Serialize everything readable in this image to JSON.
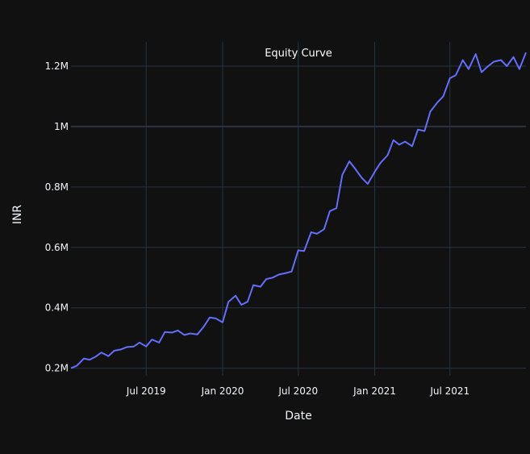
{
  "chart_data": {
    "type": "line",
    "title": "Equity Curve",
    "xlabel": "Date",
    "ylabel": "INR",
    "x_ticks": [
      "Jul 2019",
      "Jan 2020",
      "Jul 2020",
      "Jan 2021",
      "Jul 2021"
    ],
    "y_ticks": [
      "0.2M",
      "0.4M",
      "0.6M",
      "0.8M",
      "1M",
      "1.2M"
    ],
    "y_tick_values": [
      200000,
      400000,
      600000,
      800000,
      1000000,
      1200000
    ],
    "xlim": [
      "2019-01-01",
      "2021-12-31"
    ],
    "ylim": [
      175000,
      1280000
    ],
    "grid": true,
    "series": [
      {
        "name": "Equity",
        "color": "#636efa",
        "x": [
          "2019-01-01",
          "2019-01-15",
          "2019-02-01",
          "2019-02-15",
          "2019-03-01",
          "2019-03-15",
          "2019-04-01",
          "2019-04-15",
          "2019-05-01",
          "2019-05-15",
          "2019-06-01",
          "2019-06-15",
          "2019-07-01",
          "2019-07-15",
          "2019-08-01",
          "2019-08-15",
          "2019-09-01",
          "2019-09-15",
          "2019-10-01",
          "2019-10-15",
          "2019-11-01",
          "2019-11-15",
          "2019-12-01",
          "2019-12-15",
          "2020-01-01",
          "2020-01-15",
          "2020-02-01",
          "2020-02-15",
          "2020-03-01",
          "2020-03-15",
          "2020-04-01",
          "2020-04-15",
          "2020-05-01",
          "2020-05-15",
          "2020-06-01",
          "2020-06-15",
          "2020-07-01",
          "2020-07-15",
          "2020-08-01",
          "2020-08-15",
          "2020-09-01",
          "2020-09-15",
          "2020-10-01",
          "2020-10-15",
          "2020-11-01",
          "2020-11-15",
          "2020-12-01",
          "2020-12-15",
          "2021-01-01",
          "2021-01-15",
          "2021-02-01",
          "2021-02-15",
          "2021-03-01",
          "2021-03-15",
          "2021-04-01",
          "2021-04-15",
          "2021-05-01",
          "2021-05-15",
          "2021-06-01",
          "2021-06-15",
          "2021-07-01",
          "2021-07-15",
          "2021-08-01",
          "2021-08-15",
          "2021-09-01",
          "2021-09-15",
          "2021-10-01",
          "2021-10-15",
          "2021-11-01",
          "2021-11-15",
          "2021-12-01",
          "2021-12-15",
          "2021-12-31"
        ],
        "values": [
          200000,
          208000,
          232000,
          228000,
          238000,
          252000,
          240000,
          258000,
          262000,
          270000,
          272000,
          285000,
          272000,
          295000,
          285000,
          320000,
          318000,
          325000,
          310000,
          315000,
          312000,
          335000,
          368000,
          365000,
          352000,
          420000,
          440000,
          410000,
          420000,
          475000,
          470000,
          495000,
          500000,
          510000,
          515000,
          520000,
          590000,
          588000,
          650000,
          645000,
          660000,
          720000,
          730000,
          840000,
          885000,
          860000,
          830000,
          810000,
          850000,
          880000,
          905000,
          955000,
          940000,
          950000,
          935000,
          990000,
          985000,
          1050000,
          1080000,
          1100000,
          1160000,
          1170000,
          1220000,
          1190000,
          1240000,
          1180000,
          1200000,
          1215000,
          1220000,
          1200000,
          1230000,
          1190000,
          1245000
        ]
      }
    ]
  }
}
